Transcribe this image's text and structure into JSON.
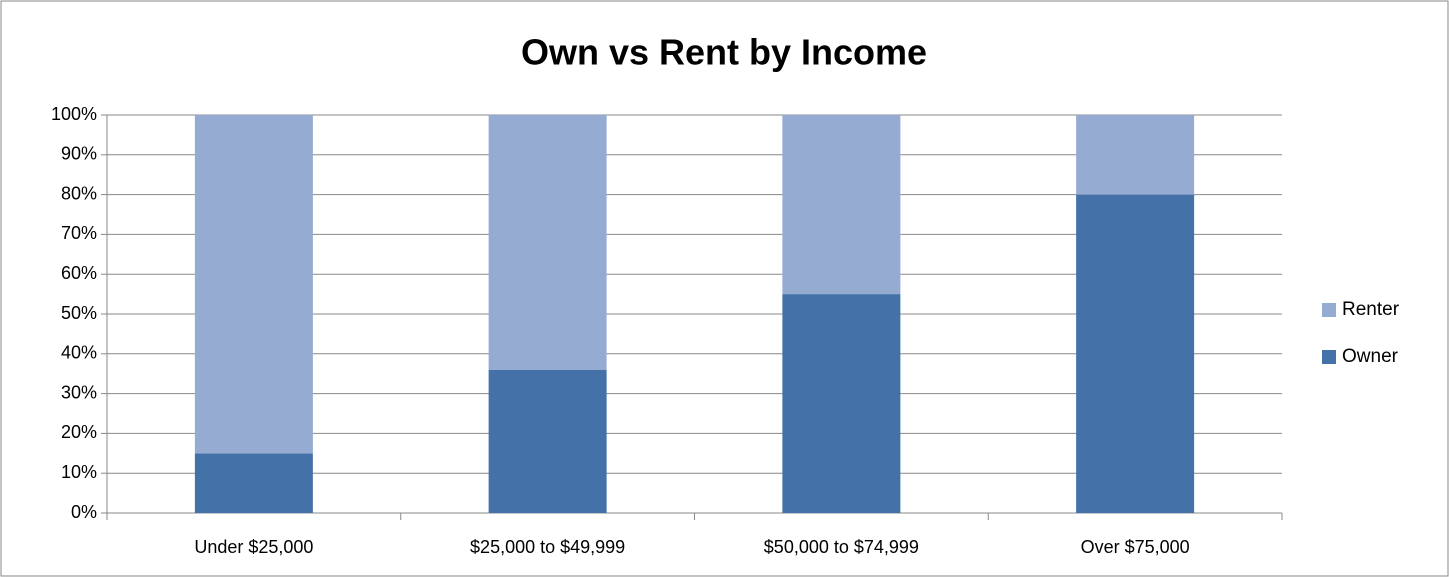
{
  "chart_data": {
    "type": "stacked_bar",
    "title": "Own vs Rent by Income",
    "categories": [
      "Under $25,000",
      "$25,000 to $49,999",
      "$50,000 to $74,999",
      "Over $75,000"
    ],
    "series": [
      {
        "name": "Owner",
        "color": "#4472a8",
        "values": [
          15,
          36,
          55,
          80
        ]
      },
      {
        "name": "Renter",
        "color": "#95abd2",
        "values": [
          85,
          64,
          45,
          20
        ]
      }
    ],
    "ylim": [
      0,
      100
    ],
    "yticks": [
      {
        "value": 0,
        "label": "0%"
      },
      {
        "value": 10,
        "label": "10%"
      },
      {
        "value": 20,
        "label": "20%"
      },
      {
        "value": 30,
        "label": "30%"
      },
      {
        "value": 40,
        "label": "40%"
      },
      {
        "value": 50,
        "label": "50%"
      },
      {
        "value": 60,
        "label": "60%"
      },
      {
        "value": 70,
        "label": "70%"
      },
      {
        "value": 80,
        "label": "80%"
      },
      {
        "value": 90,
        "label": "90%"
      },
      {
        "value": 100,
        "label": "100%"
      }
    ],
    "grid": true,
    "legend": "right"
  }
}
